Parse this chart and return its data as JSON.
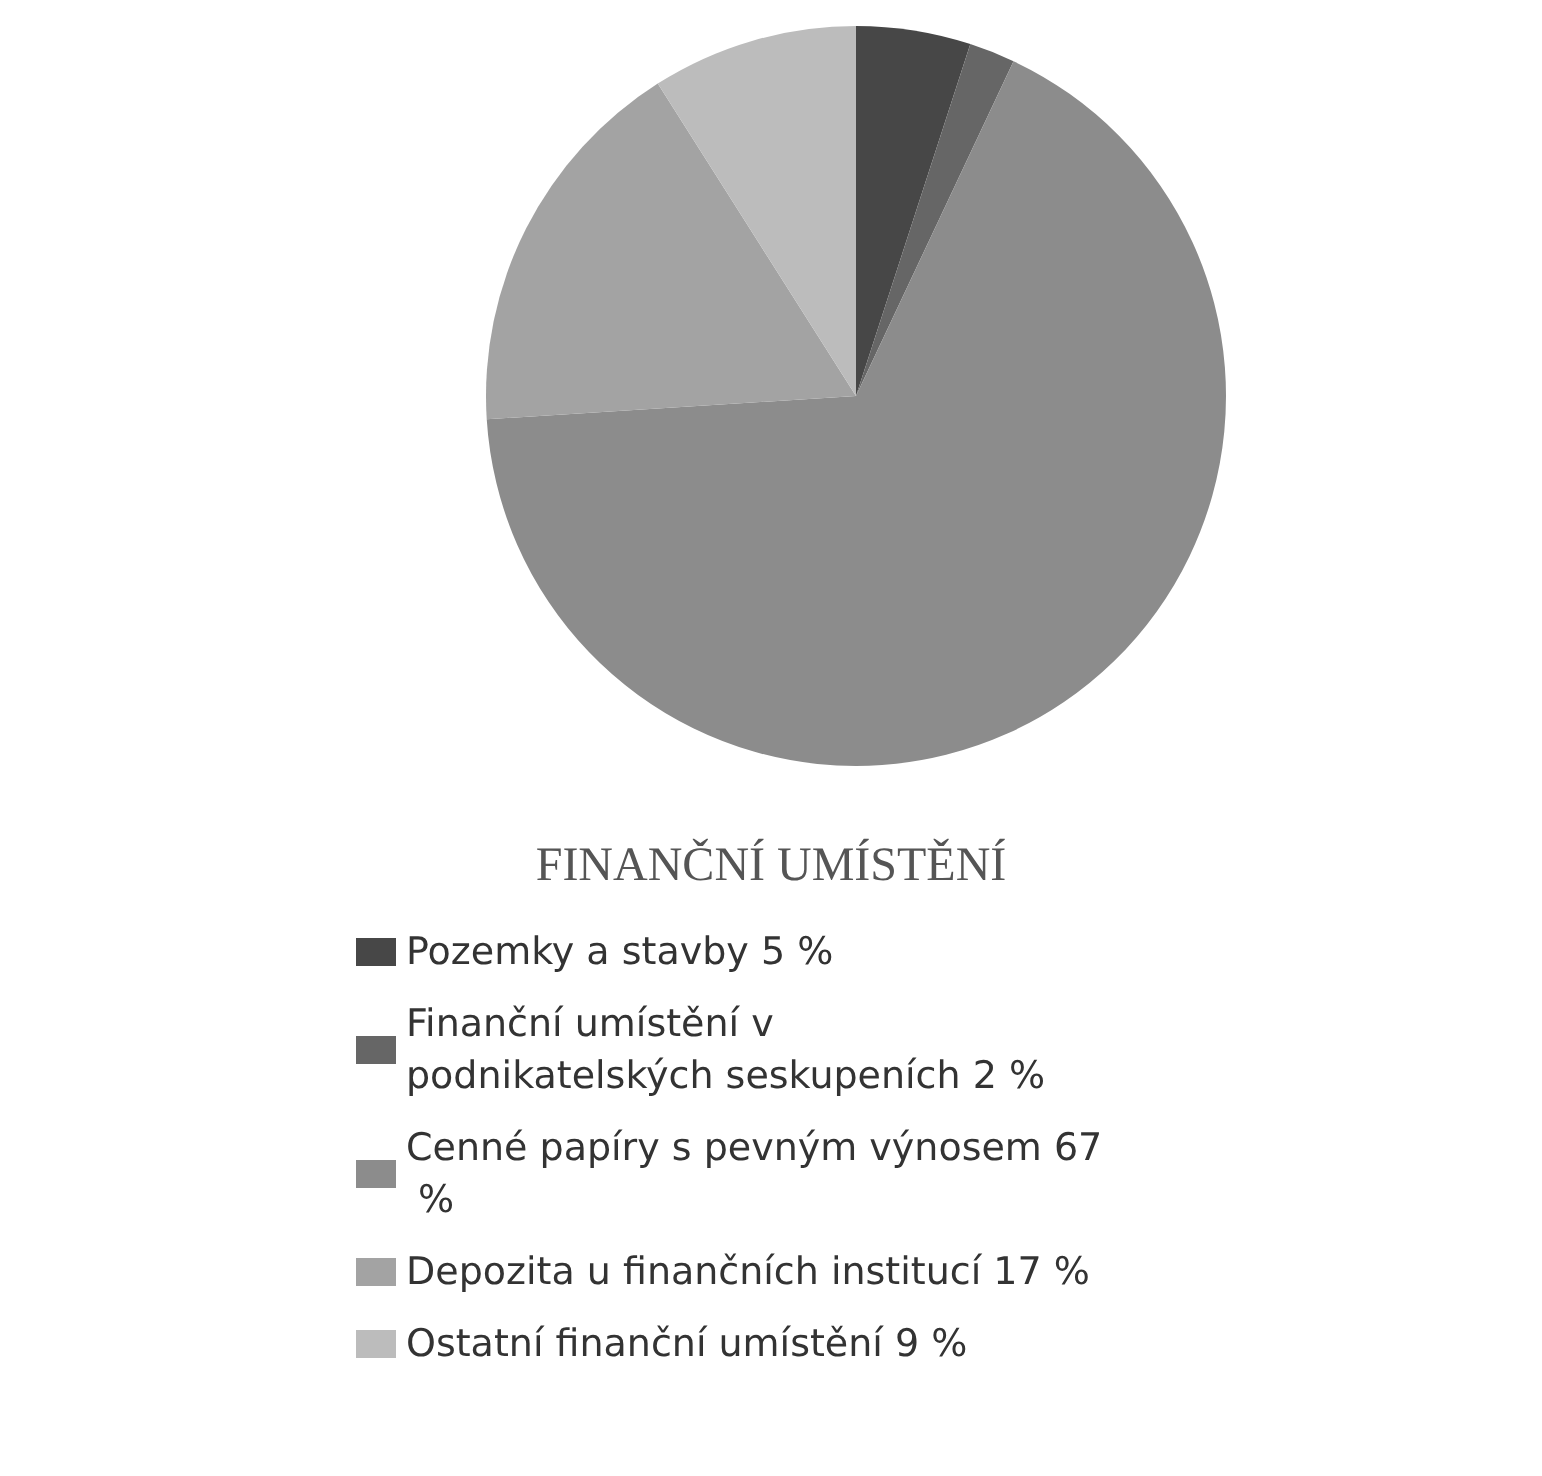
{
  "chart_data": {
    "type": "pie",
    "title": "FINANČNÍ UMÍSTĚNÍ",
    "categories": [
      "Pozemky a stavby 5 %",
      "Finanční umístění v podnikatelských seskupeních 2 %",
      "Cenné papíry s pevným výnosem 67 %",
      "Depozita u finančních institucí 17 %",
      "Ostatní finanční umístění 9 %"
    ],
    "values": [
      5,
      2,
      67,
      17,
      9
    ],
    "colors": [
      "#474747",
      "#666666",
      "#8c8c8c",
      "#a3a3a3",
      "#bcbcbc"
    ],
    "legend": "bottom"
  }
}
